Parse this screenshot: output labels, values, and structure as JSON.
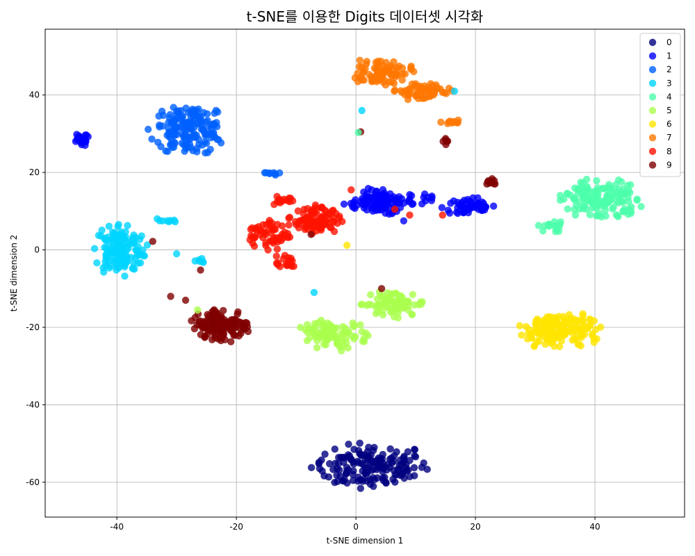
{
  "chart_data": {
    "type": "scatter",
    "title": "t-SNE를 이용한 Digits 데이터셋 시각화",
    "xlabel": "t-SNE dimension 1",
    "ylabel": "t-SNE dimension 2",
    "xlim": [
      -52,
      55
    ],
    "ylim": [
      -69,
      57
    ],
    "xticks": [
      -40,
      -20,
      0,
      20,
      40
    ],
    "yticks": [
      -60,
      -40,
      -20,
      0,
      20,
      40
    ],
    "grid": true,
    "legend": "top-right",
    "series": [
      {
        "name": "0",
        "color": "#00007f",
        "clusters": [
          {
            "cx": 2.5,
            "cy": -56,
            "rx": 10,
            "ry": 6,
            "n": 160
          }
        ]
      },
      {
        "name": "1",
        "color": "#0000ff",
        "clusters": [
          {
            "cx": 4,
            "cy": 12.5,
            "rx": 6,
            "ry": 3.5,
            "n": 110
          },
          {
            "cx": 19,
            "cy": 11,
            "rx": 4.5,
            "ry": 2.5,
            "n": 55
          },
          {
            "cx": -46,
            "cy": 28.5,
            "rx": 1.5,
            "ry": 1.8,
            "n": 22
          },
          {
            "cx": 12,
            "cy": 13,
            "rx": 2,
            "ry": 1.5,
            "n": 8
          }
        ]
      },
      {
        "name": "2",
        "color": "#0060ff",
        "clusters": [
          {
            "cx": -28,
            "cy": 31,
            "rx": 6.5,
            "ry": 6.5,
            "n": 170
          },
          {
            "cx": -14,
            "cy": 19.7,
            "rx": 1.5,
            "ry": 0.4,
            "n": 8
          }
        ]
      },
      {
        "name": "3",
        "color": "#00d4ff",
        "clusters": [
          {
            "cx": -39.5,
            "cy": 0,
            "rx": 4.5,
            "ry": 7,
            "n": 150
          },
          {
            "cx": -32,
            "cy": 7.5,
            "rx": 2,
            "ry": 0.7,
            "n": 8
          },
          {
            "cx": -26,
            "cy": -3,
            "rx": 1,
            "ry": 1,
            "n": 6
          }
        ]
      },
      {
        "name": "4",
        "color": "#4cffaa",
        "clusters": [
          {
            "cx": 41,
            "cy": 13,
            "rx": 7,
            "ry": 5.5,
            "n": 140
          },
          {
            "cx": 33,
            "cy": 6,
            "rx": 2.5,
            "ry": 1.5,
            "n": 18
          }
        ]
      },
      {
        "name": "5",
        "color": "#aaff4d",
        "clusters": [
          {
            "cx": 6,
            "cy": -14,
            "rx": 6,
            "ry": 3.5,
            "n": 80
          },
          {
            "cx": -4,
            "cy": -22,
            "rx": 6,
            "ry": 4,
            "n": 90
          }
        ]
      },
      {
        "name": "6",
        "color": "#ffe500",
        "clusters": [
          {
            "cx": 34,
            "cy": -21,
            "rx": 7,
            "ry": 5.5,
            "n": 160
          }
        ]
      },
      {
        "name": "7",
        "color": "#ff7700",
        "clusters": [
          {
            "cx": 4,
            "cy": 46,
            "rx": 5.5,
            "ry": 3.5,
            "n": 80
          },
          {
            "cx": 11,
            "cy": 41,
            "rx": 5.5,
            "ry": 2.5,
            "n": 60
          },
          {
            "cx": 16,
            "cy": 33,
            "rx": 2,
            "ry": 0.8,
            "n": 10
          }
        ]
      },
      {
        "name": "8",
        "color": "#ff1300",
        "clusters": [
          {
            "cx": -7,
            "cy": 7.5,
            "rx": 4.5,
            "ry": 4,
            "n": 90
          },
          {
            "cx": -14.5,
            "cy": 4,
            "rx": 3.5,
            "ry": 4.5,
            "n": 60
          },
          {
            "cx": -12,
            "cy": -3,
            "rx": 2.5,
            "ry": 2.5,
            "n": 20
          },
          {
            "cx": -12,
            "cy": 13,
            "rx": 3,
            "ry": 1.5,
            "n": 15
          }
        ]
      },
      {
        "name": "9",
        "color": "#7f0000",
        "clusters": [
          {
            "cx": -22.5,
            "cy": -19.5,
            "rx": 5,
            "ry": 4.5,
            "n": 140
          },
          {
            "cx": 22.5,
            "cy": 17.5,
            "rx": 1,
            "ry": 1.2,
            "n": 10
          },
          {
            "cx": 15,
            "cy": 28,
            "rx": 0.8,
            "ry": 1,
            "n": 6
          }
        ]
      }
    ],
    "outliers": [
      {
        "series": "8",
        "x": -0.8,
        "y": 15.5
      },
      {
        "series": "8",
        "x": 6.5,
        "y": 10.5
      },
      {
        "series": "8",
        "x": 9,
        "y": 9
      },
      {
        "series": "8",
        "x": 14.5,
        "y": 9
      },
      {
        "series": "6",
        "x": -1.5,
        "y": 1.2
      },
      {
        "series": "9",
        "x": -34,
        "y": 2.2
      },
      {
        "series": "9",
        "x": -26,
        "y": -5.2
      },
      {
        "series": "9",
        "x": 0.8,
        "y": 30.5
      },
      {
        "series": "9",
        "x": 4.3,
        "y": -10
      },
      {
        "series": "9",
        "x": -31,
        "y": -12
      },
      {
        "series": "9",
        "x": -28.5,
        "y": -13
      },
      {
        "series": "9",
        "x": -7.5,
        "y": 4
      },
      {
        "series": "3",
        "x": -7,
        "y": -11
      },
      {
        "series": "3",
        "x": 1,
        "y": 36
      },
      {
        "series": "3",
        "x": 16.5,
        "y": 41
      },
      {
        "series": "3",
        "x": -30,
        "y": -1
      },
      {
        "series": "4",
        "x": 0.4,
        "y": 30.3
      },
      {
        "series": "5",
        "x": -26.5,
        "y": -15.5
      },
      {
        "series": "1",
        "x": 8,
        "y": 7.5
      }
    ]
  }
}
